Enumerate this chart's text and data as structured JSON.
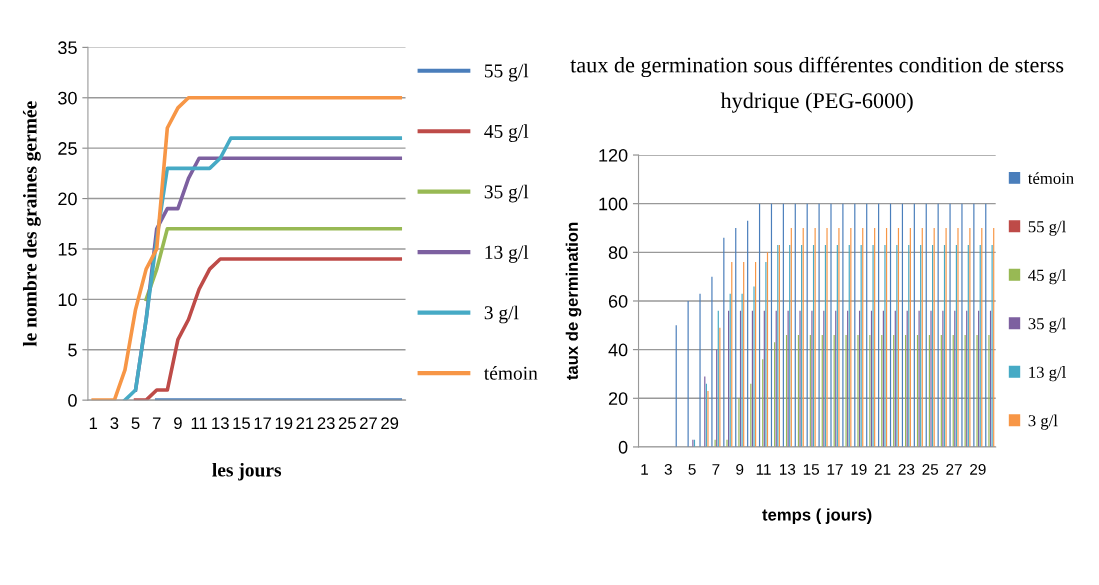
{
  "chart_data": [
    {
      "type": "line",
      "xlabel": "les jours",
      "ylabel": "le nombre des graines germée",
      "categories": [
        "1",
        null,
        "3",
        null,
        "5",
        null,
        "7",
        null,
        "9",
        null,
        "11",
        null,
        "13",
        null,
        "15",
        null,
        "17",
        null,
        "19",
        null,
        "21",
        null,
        "23",
        null,
        "25",
        null,
        "27",
        null,
        "29",
        null
      ],
      "series": [
        {
          "name": "55 g/l",
          "color": "#4a7ebb",
          "values": [
            null,
            null,
            null,
            null,
            null,
            null,
            0,
            0,
            0,
            0,
            0,
            0,
            0,
            0,
            0,
            0,
            0,
            0,
            0,
            0,
            0,
            0,
            0,
            0,
            0,
            0,
            0,
            0,
            0,
            0
          ]
        },
        {
          "name": "45 g/l",
          "color": "#be4b48",
          "values": [
            null,
            null,
            null,
            null,
            0,
            0,
            1,
            1,
            6,
            8,
            11,
            13,
            14,
            14,
            14,
            14,
            14,
            14,
            14,
            14,
            14,
            14,
            14,
            14,
            14,
            14,
            14,
            14,
            14,
            14
          ]
        },
        {
          "name": "35 g/l",
          "color": "#98b954",
          "values": [
            null,
            null,
            null,
            null,
            null,
            10,
            13,
            17,
            17,
            17,
            17,
            17,
            17,
            17,
            17,
            17,
            17,
            17,
            17,
            17,
            17,
            17,
            17,
            17,
            17,
            17,
            17,
            17,
            17,
            17
          ]
        },
        {
          "name": "13 g/l",
          "color": "#7d60a0",
          "values": [
            null,
            null,
            null,
            null,
            1,
            8,
            17,
            19,
            19,
            22,
            24,
            24,
            24,
            24,
            24,
            24,
            24,
            24,
            24,
            24,
            24,
            24,
            24,
            24,
            24,
            24,
            24,
            24,
            24,
            24
          ]
        },
        {
          "name": "3 g/l",
          "color": "#46aac5",
          "values": [
            null,
            null,
            null,
            0,
            1,
            8,
            16,
            23,
            23,
            23,
            23,
            23,
            24,
            26,
            26,
            26,
            26,
            26,
            26,
            26,
            26,
            26,
            26,
            26,
            26,
            26,
            26,
            26,
            26,
            26
          ]
        },
        {
          "name": "témoin",
          "color": "#f79646",
          "values": [
            0,
            0,
            0,
            3,
            9,
            13,
            15,
            27,
            29,
            30,
            30,
            30,
            30,
            30,
            30,
            30,
            30,
            30,
            30,
            30,
            30,
            30,
            30,
            30,
            30,
            30,
            30,
            30,
            30,
            30
          ]
        }
      ],
      "ylim": [
        0,
        35
      ],
      "yticks": [
        0,
        5,
        10,
        15,
        20,
        25,
        30,
        35
      ],
      "grid": "y",
      "legend": "right"
    },
    {
      "type": "bar",
      "title": "taux de germination sous différentes condition de sterss hydrique (PEG-6000)",
      "xlabel": "temps ( jours)",
      "ylabel": "taux de germination",
      "categories": [
        "1",
        null,
        "3",
        null,
        "5",
        null,
        "7",
        null,
        "9",
        null,
        "11",
        null,
        "13",
        null,
        "15",
        null,
        "17",
        null,
        "19",
        null,
        "21",
        null,
        "23",
        null,
        "25",
        null,
        "27",
        null,
        "29",
        null
      ],
      "series": [
        {
          "name": "témoin",
          "color": "#4a7ebb",
          "values": [
            0,
            0,
            0,
            50,
            60,
            63,
            70,
            86,
            90,
            93,
            100,
            100,
            100,
            100,
            100,
            100,
            100,
            100,
            100,
            100,
            100,
            100,
            100,
            100,
            100,
            100,
            100,
            100,
            100,
            100
          ]
        },
        {
          "name": "55 g/l",
          "color": "#be4b48",
          "values": [
            0,
            0,
            0,
            0,
            0,
            0,
            0,
            0,
            0,
            0,
            0,
            0,
            0,
            0,
            0,
            0,
            0,
            0,
            0,
            0,
            0,
            0,
            0,
            0,
            0,
            0,
            0,
            0,
            0,
            0
          ]
        },
        {
          "name": "45 g/l",
          "color": "#98b954",
          "values": [
            0,
            0,
            0,
            0,
            0,
            0,
            3,
            3,
            20,
            26,
            36,
            43,
            46,
            46,
            46,
            46,
            46,
            46,
            46,
            46,
            46,
            46,
            46,
            46,
            46,
            46,
            46,
            46,
            46,
            46
          ]
        },
        {
          "name": "35 g/l",
          "color": "#7d60a0",
          "values": [
            0,
            0,
            0,
            0,
            3,
            29,
            40,
            56,
            56,
            56,
            56,
            56,
            56,
            56,
            56,
            56,
            56,
            56,
            56,
            56,
            56,
            56,
            56,
            56,
            56,
            56,
            56,
            56,
            56,
            56
          ]
        },
        {
          "name": "13 g/l",
          "color": "#46aac5",
          "values": [
            0,
            0,
            0,
            0,
            3,
            26,
            56,
            63,
            63,
            66,
            76,
            83,
            83,
            83,
            83,
            83,
            83,
            83,
            83,
            83,
            83,
            83,
            83,
            83,
            83,
            83,
            83,
            83,
            83,
            83
          ]
        },
        {
          "name": "3 g/l",
          "color": "#f79646",
          "values": [
            0,
            0,
            0,
            0,
            0,
            23,
            49,
            76,
            76,
            76,
            80,
            83,
            90,
            90,
            90,
            90,
            90,
            90,
            90,
            90,
            90,
            90,
            90,
            90,
            90,
            90,
            90,
            90,
            90,
            90
          ]
        }
      ],
      "ylim": [
        0,
        120
      ],
      "yticks": [
        0,
        20,
        40,
        60,
        80,
        100,
        120
      ],
      "grid": "y",
      "legend": "right"
    }
  ]
}
